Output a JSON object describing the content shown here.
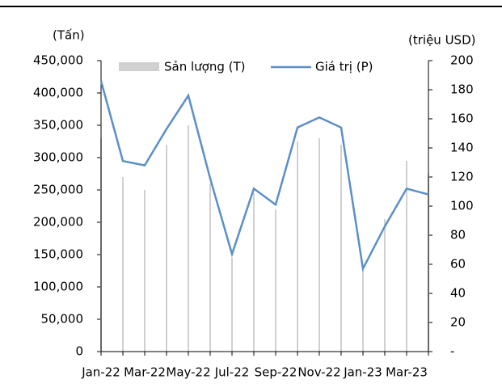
{
  "chart_data": {
    "type": "bar_line",
    "y_label": "(Tấn)",
    "y2_label": "(triệu USD)",
    "categories": [
      "Jan-22",
      null,
      "Mar-22",
      null,
      "May-22",
      null,
      "Jul-22",
      null,
      "Sep-22",
      null,
      "Nov-22",
      null,
      "Jan-23",
      null,
      "Mar-23",
      null
    ],
    "series": [
      {
        "name": "Sản lượng (T)",
        "type": "bar",
        "color": "#d0d0d0",
        "values": [
          330000,
          270000,
          250000,
          320000,
          350000,
          260000,
          145000,
          245000,
          220000,
          325000,
          330000,
          320000,
          130000,
          205000,
          295000,
          275000
        ]
      },
      {
        "name": "Giá trị (P)",
        "type": "line",
        "axis": "y2",
        "color": "#5b8fc7",
        "values": [
          186,
          131,
          128,
          153,
          176,
          119,
          67,
          112,
          101,
          154,
          161,
          154,
          57,
          86,
          112,
          108
        ]
      }
    ],
    "ylim": [
      0,
      450000
    ],
    "yticks": [
      0,
      {
        "value": 50000,
        "label": "50,000"
      },
      {
        "value": 100000,
        "label": "100,000"
      },
      {
        "value": 150000,
        "label": "150,000"
      },
      {
        "value": 200000,
        "label": "200,000"
      },
      {
        "value": 250000,
        "label": "250,000"
      },
      {
        "value": 300000,
        "label": "300,000"
      },
      {
        "value": 350000,
        "label": "350,000"
      },
      {
        "value": 400000,
        "label": "400,000"
      },
      {
        "value": 450000,
        "label": "450,000"
      }
    ],
    "y2lim": [
      0,
      200
    ],
    "y2ticks": [
      {
        "value": 0,
        "label": "-"
      },
      20,
      40,
      60,
      80,
      100,
      120,
      140,
      160,
      180,
      200
    ],
    "legend": "top"
  }
}
